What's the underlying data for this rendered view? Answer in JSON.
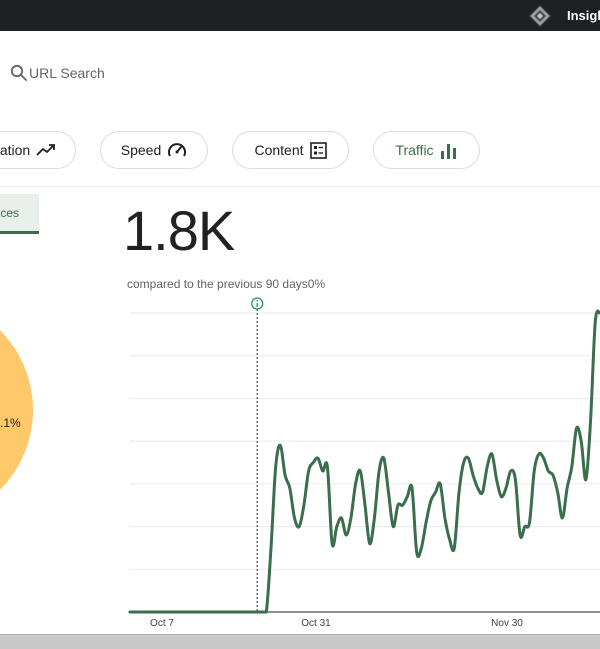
{
  "header": {
    "brand": "Insigh",
    "logo_icon": "diamond-logo-icon"
  },
  "search": {
    "label": "URL Search",
    "icon": "search-icon"
  },
  "tabs": [
    {
      "label": "ation",
      "icon": "trending-up-icon"
    },
    {
      "label": "Speed",
      "icon": "speedometer-icon"
    },
    {
      "label": "Content",
      "icon": "content-list-icon"
    },
    {
      "label": "Traffic",
      "icon": "bar-chart-icon",
      "selected": true
    }
  ],
  "subtab": {
    "label": "ces"
  },
  "pie": {
    "visible_label": ".1%",
    "color": "#ffc86b"
  },
  "metric": {
    "value": "1.8K",
    "compare_text": "compared to the previous 90 days",
    "compare_delta": "0%"
  },
  "colors": {
    "accent": "#3a6e4c",
    "pie": "#ffc86b",
    "topbar": "#1f2023"
  },
  "chart_data": {
    "type": "line",
    "x_ticks": [
      "Oct 7",
      "Oct 31",
      "Nov 30"
    ],
    "grid": true,
    "marker": {
      "icon": "info-icon",
      "position_ratio": 0.26
    },
    "ylim": [
      0,
      7
    ],
    "series": [
      {
        "values": [
          0,
          0,
          0,
          0,
          0,
          0,
          0,
          0,
          0,
          0,
          0,
          0,
          0,
          0,
          0,
          0,
          0,
          0,
          0,
          0,
          0,
          0,
          0,
          0,
          0,
          0,
          0,
          0,
          0,
          0,
          1.5,
          3.4,
          3.9,
          3.2,
          2.9,
          2.2,
          2.0,
          2.5,
          3.3,
          3.5,
          3.6,
          3.3,
          3.4,
          1.6,
          2.0,
          2.2,
          1.8,
          2.2,
          3.0,
          3.3,
          2.5,
          1.6,
          2.2,
          3.3,
          3.6,
          2.8,
          2.0,
          2.5,
          2.5,
          2.7,
          2.9,
          1.4,
          1.5,
          2.1,
          2.6,
          2.8,
          3.0,
          2.2,
          1.7,
          1.5,
          2.8,
          3.5,
          3.6,
          3.2,
          2.9,
          2.8,
          3.4,
          3.7,
          3.1,
          2.7,
          2.9,
          3.3,
          3.1,
          1.8,
          2.0,
          2.1,
          3.3,
          3.7,
          3.6,
          3.3,
          3.2,
          2.8,
          2.2,
          2.9,
          3.4,
          4.3,
          4.0,
          3.1,
          4.5,
          6.8,
          7.0
        ]
      }
    ]
  }
}
